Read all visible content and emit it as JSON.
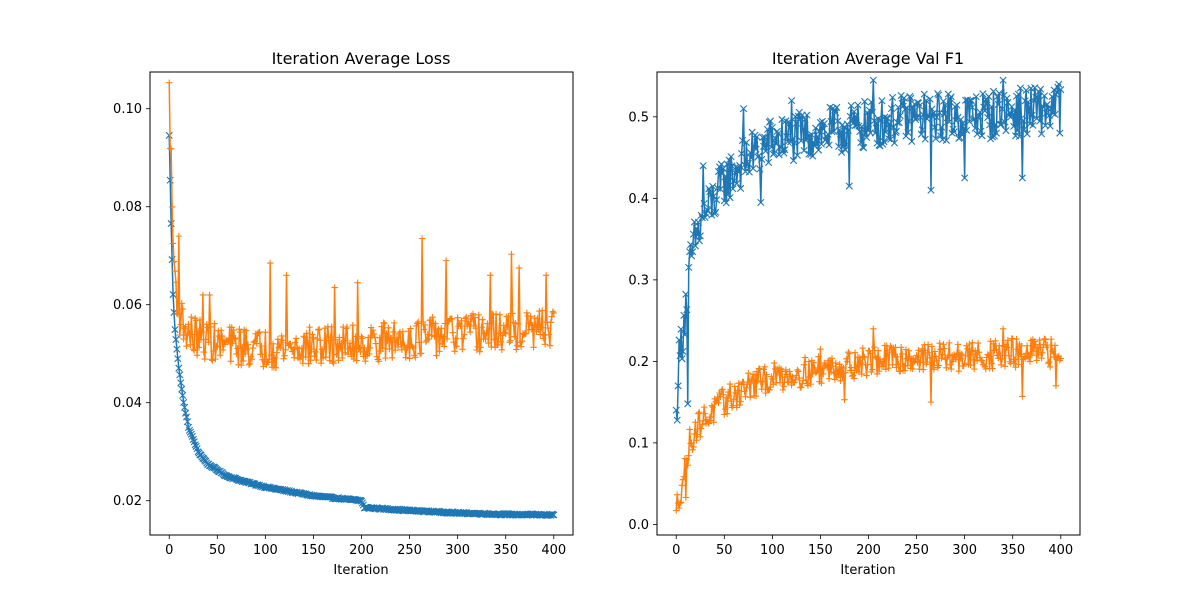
{
  "chart_data": [
    {
      "type": "line",
      "title": "Iteration Average Loss",
      "xlabel": "Iteration",
      "ylabel": "",
      "xlim": [
        -20,
        420
      ],
      "ylim": [
        0.013,
        0.1075
      ],
      "xticks": [
        0,
        50,
        100,
        150,
        200,
        250,
        300,
        350,
        400
      ],
      "yticks": [
        0.02,
        0.04,
        0.06,
        0.08,
        0.1
      ],
      "ytick_labels": [
        "0.02",
        "0.04",
        "0.06",
        "0.08",
        "0.10"
      ],
      "grid": false,
      "legend": "none",
      "x_range": [
        0,
        400
      ],
      "series": [
        {
          "color": "#1f77b4",
          "marker": "x",
          "model": "decay",
          "start": 0.0945,
          "knots": [
            [
              0,
              0.0945
            ],
            [
              2,
              0.0765
            ],
            [
              4,
              0.062
            ],
            [
              6,
              0.055
            ],
            [
              10,
              0.047
            ],
            [
              15,
              0.04
            ],
            [
              20,
              0.035
            ],
            [
              30,
              0.03
            ],
            [
              40,
              0.0275
            ],
            [
              60,
              0.025
            ],
            [
              80,
              0.0238
            ],
            [
              100,
              0.0228
            ],
            [
              150,
              0.021
            ],
            [
              200,
              0.02
            ],
            [
              203,
              0.0186
            ],
            [
              250,
              0.018
            ],
            [
              300,
              0.0175
            ],
            [
              350,
              0.0172
            ],
            [
              400,
              0.0171
            ]
          ],
          "noise": 0.0003
        },
        {
          "color": "#ff7f0e",
          "marker": "+",
          "model": "noisy",
          "knots": [
            [
              0,
              0.1035
            ],
            [
              2,
              0.088
            ],
            [
              4,
              0.072
            ],
            [
              6,
              0.066
            ],
            [
              10,
              0.058
            ],
            [
              20,
              0.054
            ],
            [
              50,
              0.052
            ],
            [
              100,
              0.051
            ],
            [
              200,
              0.052
            ],
            [
              300,
              0.054
            ],
            [
              400,
              0.055
            ]
          ],
          "noise": 0.004,
          "spikes": [
            [
              4,
              0.0725
            ],
            [
              10,
              0.074
            ],
            [
              35,
              0.062
            ],
            [
              42,
              0.062
            ],
            [
              105,
              0.0685
            ],
            [
              122,
              0.066
            ],
            [
              172,
              0.0635
            ],
            [
              196,
              0.0645
            ],
            [
              263,
              0.0735
            ],
            [
              288,
              0.069
            ],
            [
              334,
              0.066
            ],
            [
              356,
              0.0703
            ],
            [
              364,
              0.0675
            ],
            [
              392,
              0.066
            ]
          ]
        }
      ]
    },
    {
      "type": "line",
      "title": "Iteration Average Val F1",
      "xlabel": "Iteration",
      "ylabel": "",
      "xlim": [
        -20,
        420
      ],
      "ylim": [
        -0.013,
        0.555
      ],
      "xticks": [
        0,
        50,
        100,
        150,
        200,
        250,
        300,
        350,
        400
      ],
      "yticks": [
        0.0,
        0.1,
        0.2,
        0.3,
        0.4,
        0.5
      ],
      "ytick_labels": [
        "0.0",
        "0.1",
        "0.2",
        "0.3",
        "0.4",
        "0.5"
      ],
      "grid": false,
      "legend": "none",
      "x_range": [
        0,
        400
      ],
      "series": [
        {
          "color": "#1f77b4",
          "marker": "x",
          "model": "noisy",
          "knots": [
            [
              0,
              0.125
            ],
            [
              2,
              0.19
            ],
            [
              5,
              0.22
            ],
            [
              10,
              0.27
            ],
            [
              15,
              0.32
            ],
            [
              20,
              0.35
            ],
            [
              30,
              0.38
            ],
            [
              50,
              0.42
            ],
            [
              75,
              0.45
            ],
            [
              100,
              0.47
            ],
            [
              150,
              0.48
            ],
            [
              200,
              0.49
            ],
            [
              250,
              0.5
            ],
            [
              300,
              0.5
            ],
            [
              350,
              0.505
            ],
            [
              400,
              0.51
            ]
          ],
          "noise": 0.03,
          "spikes": [
            [
              12,
              0.148
            ],
            [
              28,
              0.44
            ],
            [
              70,
              0.51
            ],
            [
              88,
              0.395
            ],
            [
              120,
              0.52
            ],
            [
              180,
              0.415
            ],
            [
              205,
              0.545
            ],
            [
              265,
              0.41
            ],
            [
              300,
              0.425
            ],
            [
              340,
              0.545
            ],
            [
              360,
              0.425
            ],
            [
              398,
              0.54
            ]
          ]
        },
        {
          "color": "#ff7f0e",
          "marker": "+",
          "model": "noisy",
          "knots": [
            [
              0,
              0.02
            ],
            [
              5,
              0.045
            ],
            [
              10,
              0.075
            ],
            [
              15,
              0.105
            ],
            [
              25,
              0.125
            ],
            [
              50,
              0.15
            ],
            [
              75,
              0.17
            ],
            [
              100,
              0.18
            ],
            [
              150,
              0.19
            ],
            [
              200,
              0.2
            ],
            [
              250,
              0.205
            ],
            [
              300,
              0.205
            ],
            [
              350,
              0.21
            ],
            [
              400,
              0.21
            ]
          ],
          "noise": 0.018,
          "spikes": [
            [
              0,
              0.017
            ],
            [
              10,
              0.033
            ],
            [
              150,
              0.215
            ],
            [
              175,
              0.153
            ],
            [
              205,
              0.24
            ],
            [
              265,
              0.15
            ],
            [
              340,
              0.24
            ],
            [
              360,
              0.157
            ],
            [
              395,
              0.17
            ]
          ]
        }
      ]
    }
  ]
}
